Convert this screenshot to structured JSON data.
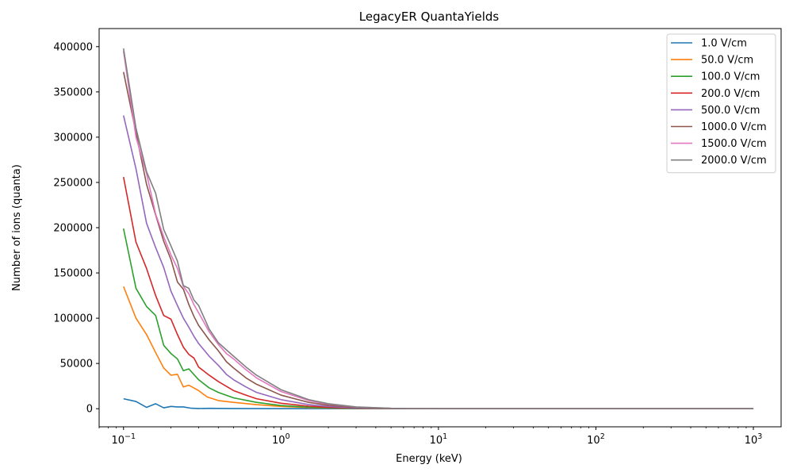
{
  "chart_data": {
    "type": "line",
    "title": "LegacyER QuantaYields",
    "xlabel": "Energy (keV)",
    "ylabel": "Number of ions (quanta)",
    "xscale": "log",
    "xlim": [
      0.07,
      1500
    ],
    "ylim": [
      -20000,
      420000
    ],
    "x_ticks": [
      {
        "value": 0.1,
        "base": "10",
        "exp": "−1"
      },
      {
        "value": 1,
        "base": "10",
        "exp": "0"
      },
      {
        "value": 10,
        "base": "10",
        "exp": "1"
      },
      {
        "value": 100,
        "base": "10",
        "exp": "2"
      },
      {
        "value": 1000,
        "base": "10",
        "exp": "3"
      }
    ],
    "y_ticks": [
      0,
      50000,
      100000,
      150000,
      200000,
      250000,
      300000,
      350000,
      400000
    ],
    "legend_position": "top-right",
    "grid": false,
    "series": [
      {
        "name": "1.0 V/cm",
        "color": "#1f77b4",
        "x": [
          0.1,
          0.12,
          0.14,
          0.16,
          0.18,
          0.2,
          0.22,
          0.24,
          0.27,
          0.3,
          0.35,
          0.4,
          0.5,
          1,
          2,
          10,
          100,
          1000
        ],
        "y": [
          11000,
          8000,
          1500,
          5500,
          1000,
          2500,
          2000,
          2000,
          500,
          200,
          400,
          300,
          200,
          100,
          50,
          0,
          0,
          0
        ]
      },
      {
        "name": "50.0 V/cm",
        "color": "#ff7f0e",
        "x": [
          0.1,
          0.12,
          0.14,
          0.16,
          0.18,
          0.2,
          0.22,
          0.24,
          0.26,
          0.3,
          0.34,
          0.4,
          0.5,
          0.7,
          1,
          1.5,
          2,
          3,
          5,
          10,
          100,
          1000
        ],
        "y": [
          135000,
          100000,
          82000,
          62000,
          45000,
          37000,
          38000,
          24000,
          26000,
          20000,
          13000,
          9000,
          7000,
          4500,
          2500,
          1200,
          800,
          300,
          100,
          0,
          0,
          0
        ]
      },
      {
        "name": "100.0 V/cm",
        "color": "#2ca02c",
        "x": [
          0.1,
          0.12,
          0.14,
          0.16,
          0.18,
          0.2,
          0.22,
          0.24,
          0.26,
          0.3,
          0.35,
          0.4,
          0.5,
          0.7,
          1,
          1.5,
          2,
          3,
          5,
          10,
          100,
          1000
        ],
        "y": [
          199000,
          133000,
          113000,
          103000,
          70000,
          61000,
          55000,
          42000,
          44000,
          32000,
          23000,
          18000,
          12000,
          7000,
          3500,
          1700,
          1000,
          400,
          100,
          0,
          0,
          0
        ]
      },
      {
        "name": "200.0 V/cm",
        "color": "#d62728",
        "x": [
          0.1,
          0.12,
          0.14,
          0.16,
          0.18,
          0.2,
          0.22,
          0.24,
          0.26,
          0.28,
          0.3,
          0.35,
          0.4,
          0.5,
          0.6,
          0.7,
          1,
          1.5,
          2,
          3,
          5,
          10,
          100,
          1000
        ],
        "y": [
          256000,
          184000,
          155000,
          125000,
          103000,
          99000,
          82000,
          68000,
          60000,
          56000,
          46000,
          37000,
          30000,
          20000,
          15000,
          11000,
          6000,
          2800,
          1500,
          600,
          150,
          0,
          0,
          0
        ]
      },
      {
        "name": "500.0 V/cm",
        "color": "#9467bd",
        "x": [
          0.1,
          0.12,
          0.14,
          0.16,
          0.18,
          0.2,
          0.22,
          0.24,
          0.26,
          0.28,
          0.3,
          0.35,
          0.4,
          0.45,
          0.5,
          0.6,
          0.7,
          1,
          1.5,
          2,
          3,
          5,
          10,
          100,
          1000
        ],
        "y": [
          324000,
          265000,
          205000,
          178000,
          156000,
          130000,
          114000,
          100000,
          90000,
          80000,
          72000,
          58000,
          48000,
          38000,
          32000,
          24000,
          18000,
          10000,
          4500,
          2500,
          900,
          200,
          0,
          0,
          0
        ]
      },
      {
        "name": "1000.0 V/cm",
        "color": "#8c564b",
        "x": [
          0.1,
          0.12,
          0.14,
          0.16,
          0.18,
          0.2,
          0.22,
          0.24,
          0.26,
          0.28,
          0.3,
          0.35,
          0.4,
          0.45,
          0.5,
          0.6,
          0.7,
          1,
          1.5,
          2,
          3,
          5,
          10,
          100,
          1000
        ],
        "y": [
          372000,
          305000,
          248000,
          214000,
          185000,
          165000,
          140000,
          132000,
          115000,
          102000,
          92000,
          76000,
          64000,
          52000,
          45000,
          34000,
          27000,
          15000,
          7000,
          3800,
          1400,
          300,
          0,
          0,
          0
        ]
      },
      {
        "name": "1500.0 V/cm",
        "color": "#e377c2",
        "x": [
          0.1,
          0.12,
          0.14,
          0.16,
          0.18,
          0.2,
          0.22,
          0.24,
          0.26,
          0.28,
          0.3,
          0.35,
          0.4,
          0.45,
          0.5,
          0.6,
          0.7,
          1,
          1.5,
          2,
          3,
          5,
          10,
          100,
          1000
        ],
        "y": [
          395000,
          300000,
          260000,
          215000,
          190000,
          170000,
          155000,
          135000,
          127000,
          115000,
          106000,
          85000,
          71000,
          61000,
          55000,
          43000,
          34000,
          19000,
          9000,
          5000,
          1800,
          400,
          0,
          0,
          0
        ]
      },
      {
        "name": "2000.0 V/cm",
        "color": "#7f7f7f",
        "x": [
          0.1,
          0.12,
          0.14,
          0.16,
          0.18,
          0.2,
          0.22,
          0.24,
          0.26,
          0.28,
          0.3,
          0.35,
          0.4,
          0.45,
          0.5,
          0.6,
          0.7,
          1,
          1.5,
          2,
          3,
          5,
          10,
          100,
          1000
        ],
        "y": [
          398000,
          310000,
          262000,
          238000,
          198000,
          180000,
          163000,
          136000,
          133000,
          120000,
          114000,
          88000,
          73000,
          65000,
          58000,
          46000,
          37000,
          21000,
          10000,
          5500,
          2000,
          450,
          0,
          0,
          0
        ]
      }
    ]
  }
}
